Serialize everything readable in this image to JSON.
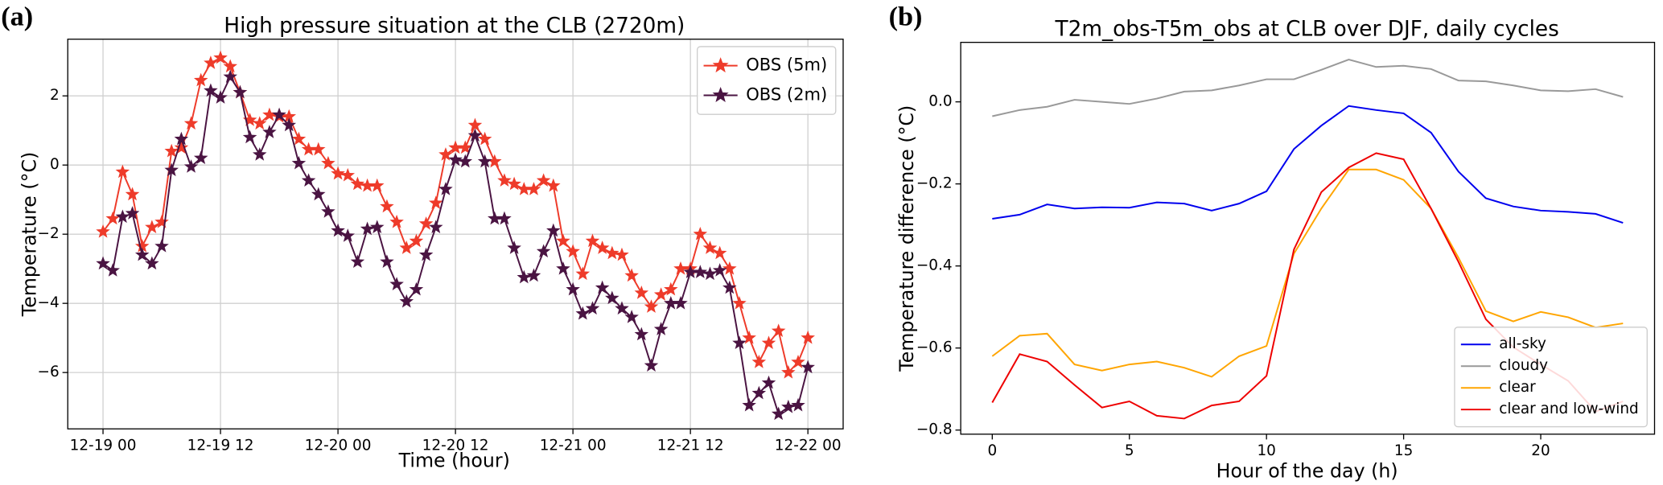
{
  "chart_data": [
    {
      "type": "line",
      "panel_label": "(a)",
      "title": "High pressure situation at the CLB (2720m)",
      "xlabel": "Time (hour)",
      "ylabel": "Temperature (°C)",
      "marker": "star",
      "grid": true,
      "legend": "upper right",
      "x": [
        0,
        1,
        2,
        3,
        4,
        5,
        6,
        7,
        8,
        9,
        10,
        11,
        12,
        13,
        14,
        15,
        16,
        17,
        18,
        19,
        20,
        21,
        22,
        23,
        24,
        25,
        26,
        27,
        28,
        29,
        30,
        31,
        32,
        33,
        34,
        35,
        36,
        37,
        38,
        39,
        40,
        41,
        42,
        43,
        44,
        45,
        46,
        47,
        48,
        49,
        50,
        51,
        52,
        53,
        54,
        55,
        56,
        57,
        58,
        59,
        60,
        61,
        62,
        63,
        64,
        65,
        66,
        67,
        68,
        69,
        70,
        71,
        72
      ],
      "xlim": [
        -3.6,
        75.6
      ],
      "xticks": [
        {
          "value": 0,
          "label": "12-19 00"
        },
        {
          "value": 12,
          "label": "12-19 12"
        },
        {
          "value": 24,
          "label": "12-20 00"
        },
        {
          "value": 36,
          "label": "12-20 12"
        },
        {
          "value": 48,
          "label": "12-21 00"
        },
        {
          "value": 60,
          "label": "12-21 12"
        },
        {
          "value": 72,
          "label": "12-22 00"
        }
      ],
      "ylim": [
        -7.63,
        3.64
      ],
      "yticks": [
        {
          "value": -6,
          "label": "−6"
        },
        {
          "value": -4,
          "label": "−4"
        },
        {
          "value": -2,
          "label": "−2"
        },
        {
          "value": 0,
          "label": "0"
        },
        {
          "value": 2,
          "label": "2"
        }
      ],
      "series": [
        {
          "name": "OBS (5m)",
          "color": "#ee3b2a",
          "values": [
            -1.93,
            -1.55,
            -0.2,
            -0.85,
            -2.35,
            -1.8,
            -1.65,
            0.4,
            0.5,
            1.2,
            2.45,
            2.95,
            3.1,
            2.85,
            2.1,
            1.3,
            1.2,
            1.45,
            1.4,
            1.4,
            0.75,
            0.45,
            0.45,
            0.05,
            -0.25,
            -0.3,
            -0.55,
            -0.6,
            -0.6,
            -1.2,
            -1.65,
            -2.4,
            -2.2,
            -1.7,
            -1.1,
            0.3,
            0.5,
            0.5,
            1.15,
            0.75,
            0.1,
            -0.45,
            -0.55,
            -0.7,
            -0.7,
            -0.45,
            -0.6,
            -2.2,
            -2.5,
            -3.15,
            -2.2,
            -2.4,
            -2.55,
            -2.6,
            -3.2,
            -3.7,
            -4.1,
            -3.75,
            -3.6,
            -3.0,
            -3.0,
            -2.0,
            -2.4,
            -2.55,
            -3.0,
            -4.0,
            -5.0,
            -5.7,
            -5.15,
            -4.8,
            -6.0,
            -5.7,
            -5.0
          ]
        },
        {
          "name": "OBS (2m)",
          "color": "#4a1442",
          "values": [
            -2.85,
            -3.05,
            -1.5,
            -1.4,
            -2.6,
            -2.85,
            -2.35,
            -0.15,
            0.75,
            -0.05,
            0.2,
            2.15,
            1.95,
            2.55,
            2.1,
            0.8,
            0.3,
            0.95,
            1.45,
            1.15,
            0.05,
            -0.45,
            -0.85,
            -1.35,
            -1.9,
            -2.05,
            -2.8,
            -1.85,
            -1.8,
            -2.8,
            -3.45,
            -3.95,
            -3.6,
            -2.6,
            -1.8,
            -0.7,
            0.15,
            0.1,
            0.85,
            0.1,
            -1.55,
            -1.55,
            -2.4,
            -3.25,
            -3.2,
            -2.5,
            -1.9,
            -3.0,
            -3.6,
            -4.3,
            -4.15,
            -3.55,
            -3.85,
            -4.15,
            -4.4,
            -4.9,
            -5.8,
            -4.75,
            -4.0,
            -4.0,
            -3.1,
            -3.1,
            -3.15,
            -3.05,
            -3.55,
            -5.15,
            -6.95,
            -6.6,
            -6.3,
            -7.2,
            -7.0,
            -6.95,
            -5.85
          ]
        }
      ]
    },
    {
      "type": "line",
      "panel_label": "(b)",
      "title": "T2m_obs-T5m_obs at CLB over DJF, daily cycles",
      "xlabel": "Hour of the day (h)",
      "ylabel": "Temperature difference (°C)",
      "grid": false,
      "legend": "lower right",
      "x": [
        0,
        1,
        2,
        3,
        4,
        5,
        6,
        7,
        8,
        9,
        10,
        11,
        12,
        13,
        14,
        15,
        16,
        17,
        18,
        19,
        20,
        21,
        22,
        23
      ],
      "xlim": [
        -1.15,
        24.15
      ],
      "xticks": [
        0,
        5,
        10,
        15,
        20
      ],
      "ylim": [
        -0.81,
        0.145
      ],
      "yticks": [
        {
          "value": -0.8,
          "label": "−0.8"
        },
        {
          "value": -0.6,
          "label": "−0.6"
        },
        {
          "value": -0.4,
          "label": "−0.4"
        },
        {
          "value": -0.2,
          "label": "−0.2"
        },
        {
          "value": 0,
          "label": "0.0"
        }
      ],
      "series": [
        {
          "name": "all-sky",
          "color": "#0000ee",
          "values": [
            -0.285,
            -0.275,
            -0.25,
            -0.26,
            -0.257,
            -0.258,
            -0.245,
            -0.248,
            -0.265,
            -0.248,
            -0.218,
            -0.115,
            -0.058,
            -0.01,
            -0.02,
            -0.028,
            -0.075,
            -0.17,
            -0.235,
            -0.255,
            -0.265,
            -0.268,
            -0.273,
            -0.295
          ]
        },
        {
          "name": "cloudy",
          "color": "#999999",
          "values": [
            -0.035,
            -0.02,
            -0.012,
            0.005,
            0.0,
            -0.005,
            0.008,
            0.025,
            0.028,
            0.04,
            0.055,
            0.055,
            0.078,
            0.103,
            0.085,
            0.088,
            0.08,
            0.052,
            0.05,
            0.04,
            0.028,
            0.026,
            0.031,
            0.012
          ]
        },
        {
          "name": "clear",
          "color": "#ffa500",
          "values": [
            -0.62,
            -0.57,
            -0.565,
            -0.64,
            -0.655,
            -0.64,
            -0.633,
            -0.648,
            -0.67,
            -0.62,
            -0.595,
            -0.37,
            -0.26,
            -0.165,
            -0.165,
            -0.19,
            -0.26,
            -0.38,
            -0.51,
            -0.535,
            -0.512,
            -0.525,
            -0.55,
            -0.54
          ]
        },
        {
          "name": "clear and low-wind",
          "color": "#ee0000",
          "values": [
            -0.733,
            -0.615,
            -0.633,
            -0.69,
            -0.745,
            -0.73,
            -0.765,
            -0.772,
            -0.74,
            -0.73,
            -0.668,
            -0.36,
            -0.22,
            -0.16,
            -0.125,
            -0.14,
            -0.26,
            -0.39,
            -0.53,
            -0.598,
            -0.64,
            -0.68,
            -0.755,
            -0.73
          ]
        }
      ]
    }
  ]
}
